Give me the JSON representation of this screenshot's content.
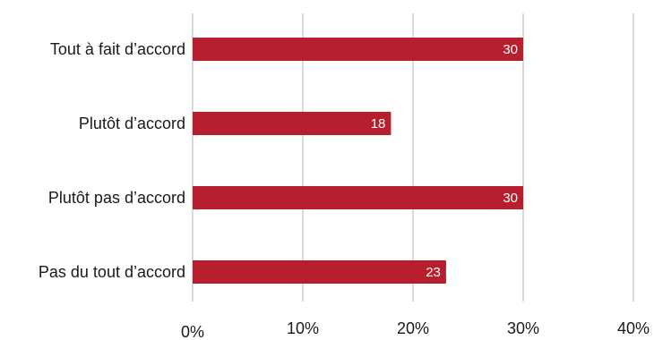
{
  "chart_data": {
    "type": "bar",
    "orientation": "horizontal",
    "title": "",
    "xlabel": "",
    "ylabel": "",
    "categories": [
      "Tout à fait d’accord",
      "Plutôt d’accord",
      "Plutôt pas d’accord",
      "Pas du tout d’accord"
    ],
    "series": [
      {
        "values": [
          30,
          18,
          30,
          23
        ],
        "data_labels": [
          "30",
          "18",
          "30",
          "23"
        ]
      }
    ],
    "xlim": [
      0,
      40
    ],
    "x_ticks": [
      0,
      10,
      20,
      30,
      40
    ],
    "x_tick_labels": [
      "0%",
      "10%",
      "20%",
      "30%",
      "40%"
    ],
    "grid": "vertical",
    "legend": "none",
    "colors": {
      "bar": "#b71f2e",
      "grid": "#b5b5b5",
      "data_label": "#ffffff",
      "text": "#1a1a1a"
    }
  }
}
